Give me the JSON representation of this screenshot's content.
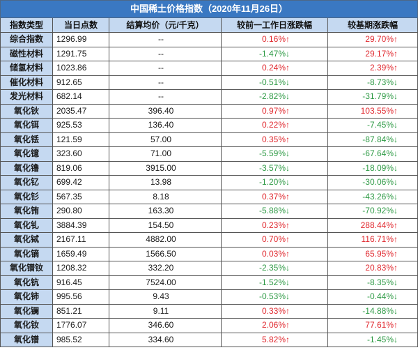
{
  "title": "中国稀土价格指数（2020年11月26日）",
  "columns": [
    "指数类型",
    "当日点数",
    "结算均价（元/千克）",
    "较前一工作日涨跌幅",
    "较基期涨跌幅"
  ],
  "rows": [
    {
      "type": "综合指数",
      "points": "1296.99",
      "price": "--",
      "daily_change": "0.16%↑",
      "base_change": "29.70%↑"
    },
    {
      "type": "磁性材料",
      "points": "1291.75",
      "price": "--",
      "daily_change": "-1.47%↓",
      "base_change": "29.17%↑"
    },
    {
      "type": "储氢材料",
      "points": "1023.86",
      "price": "--",
      "daily_change": "0.24%↑",
      "base_change": "2.39%↑"
    },
    {
      "type": "催化材料",
      "points": "912.65",
      "price": "--",
      "daily_change": "-0.51%↓",
      "base_change": "-8.73%↓"
    },
    {
      "type": "发光材料",
      "points": "682.14",
      "price": "--",
      "daily_change": "-2.82%↓",
      "base_change": "-31.79%↓"
    },
    {
      "type": "氧化钬",
      "points": "2035.47",
      "price": "396.40",
      "daily_change": "0.97%↑",
      "base_change": "103.55%↑"
    },
    {
      "type": "氧化铒",
      "points": "925.53",
      "price": "136.40",
      "daily_change": "0.22%↑",
      "base_change": "-7.45%↓"
    },
    {
      "type": "氧化铥",
      "points": "121.59",
      "price": "57.00",
      "daily_change": "0.35%↑",
      "base_change": "-87.84%↓"
    },
    {
      "type": "氧化镱",
      "points": "323.60",
      "price": "71.00",
      "daily_change": "-5.59%↓",
      "base_change": "-67.64%↓"
    },
    {
      "type": "氧化镥",
      "points": "819.06",
      "price": "3915.00",
      "daily_change": "-3.57%↓",
      "base_change": "-18.09%↓"
    },
    {
      "type": "氧化钇",
      "points": "699.42",
      "price": "13.98",
      "daily_change": "-1.20%↓",
      "base_change": "-30.06%↓"
    },
    {
      "type": "氧化钐",
      "points": "567.35",
      "price": "8.18",
      "daily_change": "0.37%↑",
      "base_change": "-43.26%↓"
    },
    {
      "type": "氧化铕",
      "points": "290.80",
      "price": "163.30",
      "daily_change": "-5.88%↓",
      "base_change": "-70.92%↓"
    },
    {
      "type": "氧化钆",
      "points": "3884.39",
      "price": "154.50",
      "daily_change": "0.23%↑",
      "base_change": "288.44%↑"
    },
    {
      "type": "氧化铽",
      "points": "2167.11",
      "price": "4882.00",
      "daily_change": "0.70%↑",
      "base_change": "116.71%↑"
    },
    {
      "type": "氧化镝",
      "points": "1659.49",
      "price": "1566.50",
      "daily_change": "0.03%↑",
      "base_change": "65.95%↑"
    },
    {
      "type": "氧化镨钕",
      "points": "1208.32",
      "price": "332.20",
      "daily_change": "-2.35%↓",
      "base_change": "20.83%↑"
    },
    {
      "type": "氧化钪",
      "points": "916.45",
      "price": "7524.00",
      "daily_change": "-1.52%↓",
      "base_change": "-8.35%↓"
    },
    {
      "type": "氧化铈",
      "points": "995.56",
      "price": "9.43",
      "daily_change": "-0.53%↓",
      "base_change": "-0.44%↓"
    },
    {
      "type": "氧化镧",
      "points": "851.21",
      "price": "9.11",
      "daily_change": "0.33%↑",
      "base_change": "-14.88%↓"
    },
    {
      "type": "氧化钕",
      "points": "1776.07",
      "price": "346.60",
      "daily_change": "2.06%↑",
      "base_change": "77.61%↑"
    },
    {
      "type": "氧化镨",
      "points": "985.52",
      "price": "334.60",
      "daily_change": "5.82%↑",
      "base_change": "-1.45%↓"
    }
  ],
  "colors": {
    "title_bar": "#3a78c2",
    "header_bg": "#c5d9f1",
    "type_col_bg": "#c5d9f1",
    "up": "#e0282e",
    "down": "#2e9a45"
  }
}
